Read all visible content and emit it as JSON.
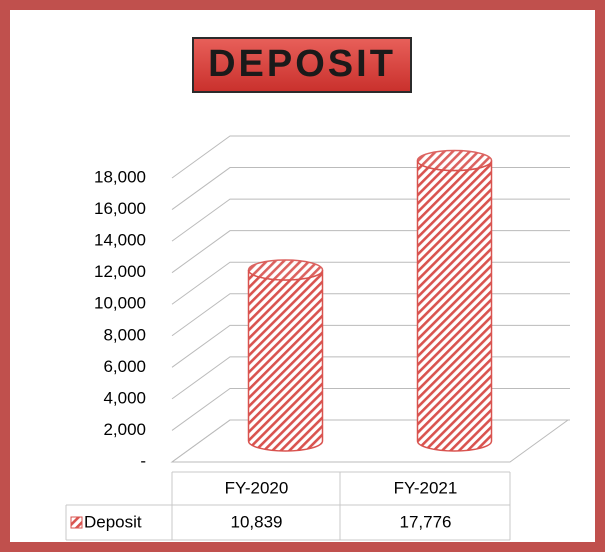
{
  "chart_data": {
    "type": "bar",
    "title": "DEPOSIT",
    "categories": [
      "FY-2020",
      "FY-2021"
    ],
    "series": [
      {
        "name": "Deposit",
        "color": "#d9534f",
        "values": [
          10839,
          17776
        ],
        "value_labels": [
          "10,839",
          "17,776"
        ]
      }
    ],
    "ylim": [
      0,
      18000
    ],
    "yticks": [
      {
        "value": 0,
        "label": "-"
      },
      {
        "value": 2000,
        "label": "2,000"
      },
      {
        "value": 4000,
        "label": "4,000"
      },
      {
        "value": 6000,
        "label": "6,000"
      },
      {
        "value": 8000,
        "label": "8,000"
      },
      {
        "value": 10000,
        "label": "10,000"
      },
      {
        "value": 12000,
        "label": "12,000"
      },
      {
        "value": 14000,
        "label": "14,000"
      },
      {
        "value": 16000,
        "label": "16,000"
      },
      {
        "value": 18000,
        "label": "18,000"
      }
    ],
    "grid": true
  }
}
